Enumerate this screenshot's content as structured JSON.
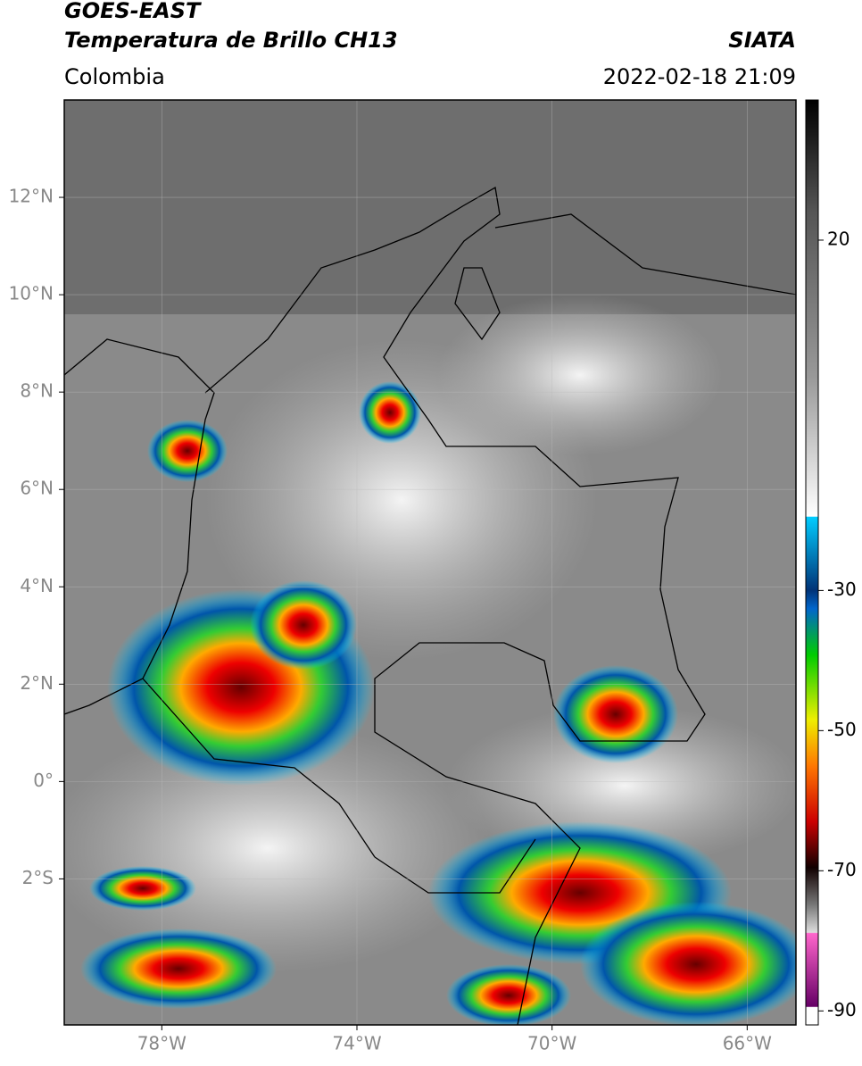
{
  "header": {
    "title": "GOES-EAST",
    "subtitle": "Temperatura de Brillo CH13",
    "region": "Colombia",
    "source": "SIATA",
    "datetime": "2022-02-18 21:09"
  },
  "map": {
    "xlim": [
      -80,
      -65
    ],
    "ylim": [
      -5,
      14
    ],
    "xticks": [
      {
        "value": -78,
        "label": "78°W"
      },
      {
        "value": -74,
        "label": "74°W"
      },
      {
        "value": -70,
        "label": "70°W"
      },
      {
        "value": -66,
        "label": "66°W"
      }
    ],
    "yticks": [
      {
        "value": 12,
        "label": "12°N"
      },
      {
        "value": 10,
        "label": "10°N"
      },
      {
        "value": 8,
        "label": "8°N"
      },
      {
        "value": 6,
        "label": "6°N"
      },
      {
        "value": 4,
        "label": "4°N"
      },
      {
        "value": 2,
        "label": "2°N"
      },
      {
        "value": 0,
        "label": "0°"
      },
      {
        "value": -2,
        "label": "2°S"
      }
    ]
  },
  "colorbar": {
    "clim": [
      -92,
      40
    ],
    "ticks": [
      20,
      -30,
      -50,
      -70,
      -90
    ]
  }
}
